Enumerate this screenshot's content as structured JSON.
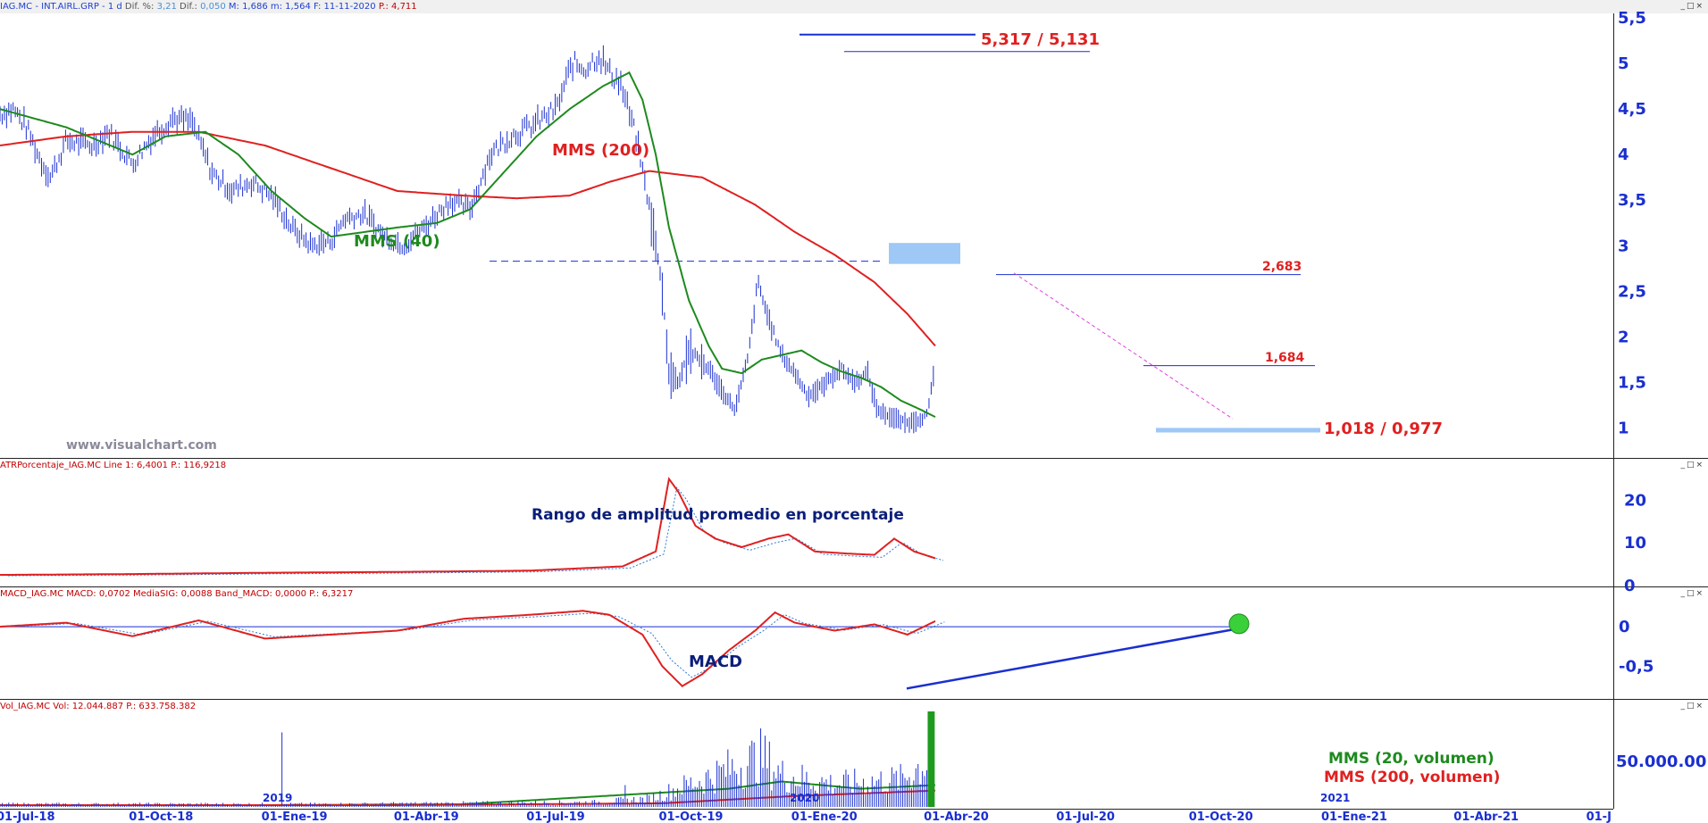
{
  "headers": {
    "price": {
      "symbol": "IAG.MC - INT.AIRL.GRP - 1 d",
      "dif_pct_label": "Dif. %:",
      "dif_pct": "3,21",
      "dif_label": "Dif.:",
      "dif": "0,050",
      "max": "M: 1,686",
      "min": "m: 1,564",
      "date": "F: 11-11-2020",
      "close": "P.: 4,711"
    },
    "atr": "ATRPorcentaje_IAG.MC  Line 1: 6,4001  P.: 116,9218",
    "macd": "MACD_IAG.MC  MACD: 0,0702  MediaSIG: 0,0088  Band_MACD: 0,0000  P.: 6,3217",
    "vol": "Vol_IAG.MC  Vol: 12.044.887  P.: 633.758.382"
  },
  "watermark": "www.visualchart.com",
  "annotations": {
    "mms200": "MMS (200)",
    "mms40": "MMS (40)",
    "high": "5,317 / 5,131",
    "r1": "2,683",
    "r2": "1,684",
    "low": "1,018 / 0,977",
    "atr_title": "Rango de amplitud promedio en porcentaje",
    "macd_title": "MACD",
    "vol20": "MMS (20, volumen)",
    "vol200": "MMS (200, volumen)",
    "year2019": "2019",
    "year2020": "2020",
    "year2021": "2021"
  },
  "colors": {
    "price": "#1a2fd0",
    "mms200": "#e02020",
    "mms40": "#1e8a1e",
    "axis": "#1a2fd0",
    "zone": "#9ec8f5",
    "signal": "#2a7ad8"
  },
  "chart_data": [
    {
      "type": "line",
      "name": "price",
      "x": [
        "01-Jul-18",
        "01-Oct-18",
        "01-Ene-19",
        "01-Abr-19",
        "01-Jul-19",
        "01-Oct-19",
        "01-Ene-20",
        "01-Abr-20",
        "01-Jul-20",
        "01-Oct-20",
        "01-Ene-21",
        "01-Abr-21",
        "01-J"
      ],
      "ylim": [
        0.7,
        5.55
      ],
      "yticks": [
        "1",
        "1,5",
        "2",
        "2,5",
        "3",
        "3,5",
        "4",
        "4,5",
        "5",
        "5,5"
      ],
      "series": [
        {
          "name": "IAG.MC",
          "points": [
            [
              0,
              4.45
            ],
            [
              0.1,
              4.5
            ],
            [
              0.2,
              4.3
            ],
            [
              0.3,
              3.95
            ],
            [
              0.38,
              3.75
            ],
            [
              0.5,
              4.15
            ],
            [
              0.7,
              4.1
            ],
            [
              0.82,
              4.25
            ],
            [
              1.0,
              3.9
            ],
            [
              1.15,
              4.2
            ],
            [
              1.3,
              4.4
            ],
            [
              1.45,
              4.35
            ],
            [
              1.6,
              3.8
            ],
            [
              1.75,
              3.6
            ],
            [
              1.9,
              3.7
            ],
            [
              2.05,
              3.55
            ],
            [
              2.2,
              3.2
            ],
            [
              2.35,
              3.0
            ],
            [
              2.5,
              3.05
            ],
            [
              2.6,
              3.3
            ],
            [
              2.75,
              3.35
            ],
            [
              2.9,
              3.1
            ],
            [
              3.05,
              3.0
            ],
            [
              3.2,
              3.2
            ],
            [
              3.4,
              3.5
            ],
            [
              3.55,
              3.4
            ],
            [
              3.7,
              4.0
            ],
            [
              3.85,
              4.2
            ],
            [
              4.0,
              4.3
            ],
            [
              4.2,
              4.5
            ],
            [
              4.32,
              5.0
            ],
            [
              4.42,
              4.95
            ],
            [
              4.52,
              5.1
            ],
            [
              4.6,
              4.9
            ],
            [
              4.68,
              4.8
            ],
            [
              4.8,
              4.2
            ],
            [
              4.88,
              3.6
            ],
            [
              4.95,
              3.0
            ],
            [
              5.0,
              2.5
            ],
            [
              5.05,
              1.6
            ],
            [
              5.12,
              1.5
            ],
            [
              5.2,
              1.85
            ],
            [
              5.35,
              1.65
            ],
            [
              5.45,
              1.4
            ],
            [
              5.55,
              1.2
            ],
            [
              5.65,
              1.8
            ],
            [
              5.72,
              2.6
            ],
            [
              5.8,
              2.2
            ],
            [
              5.9,
              1.8
            ],
            [
              6.0,
              1.6
            ],
            [
              6.1,
              1.35
            ],
            [
              6.2,
              1.45
            ],
            [
              6.35,
              1.65
            ],
            [
              6.45,
              1.5
            ],
            [
              6.55,
              1.6
            ],
            [
              6.62,
              1.2
            ],
            [
              6.75,
              1.1
            ],
            [
              6.85,
              1.05
            ],
            [
              6.95,
              1.1
            ],
            [
              7.0,
              1.15
            ],
            [
              7.06,
              1.684
            ]
          ]
        },
        {
          "name": "MMS (40)",
          "points": [
            [
              0,
              4.5
            ],
            [
              0.5,
              4.3
            ],
            [
              1.0,
              4.0
            ],
            [
              1.25,
              4.2
            ],
            [
              1.55,
              4.25
            ],
            [
              1.8,
              4.0
            ],
            [
              2.05,
              3.6
            ],
            [
              2.3,
              3.3
            ],
            [
              2.5,
              3.1
            ],
            [
              2.75,
              3.15
            ],
            [
              3.0,
              3.2
            ],
            [
              3.3,
              3.25
            ],
            [
              3.55,
              3.4
            ],
            [
              3.8,
              3.8
            ],
            [
              4.05,
              4.2
            ],
            [
              4.3,
              4.5
            ],
            [
              4.55,
              4.75
            ],
            [
              4.75,
              4.9
            ],
            [
              4.85,
              4.6
            ],
            [
              4.95,
              4.0
            ],
            [
              5.05,
              3.2
            ],
            [
              5.2,
              2.4
            ],
            [
              5.35,
              1.9
            ],
            [
              5.45,
              1.65
            ],
            [
              5.6,
              1.6
            ],
            [
              5.75,
              1.75
            ],
            [
              5.9,
              1.8
            ],
            [
              6.05,
              1.85
            ],
            [
              6.2,
              1.72
            ],
            [
              6.35,
              1.62
            ],
            [
              6.5,
              1.55
            ],
            [
              6.65,
              1.45
            ],
            [
              6.8,
              1.3
            ],
            [
              6.95,
              1.2
            ],
            [
              7.06,
              1.12
            ]
          ]
        },
        {
          "name": "MMS (200)",
          "points": [
            [
              0,
              4.1
            ],
            [
              0.5,
              4.2
            ],
            [
              1.0,
              4.25
            ],
            [
              1.5,
              4.25
            ],
            [
              2.0,
              4.1
            ],
            [
              2.5,
              3.85
            ],
            [
              3.0,
              3.6
            ],
            [
              3.5,
              3.55
            ],
            [
              3.9,
              3.52
            ],
            [
              4.3,
              3.55
            ],
            [
              4.6,
              3.7
            ],
            [
              4.9,
              3.82
            ],
            [
              5.3,
              3.75
            ],
            [
              5.7,
              3.45
            ],
            [
              6.0,
              3.15
            ],
            [
              6.3,
              2.9
            ],
            [
              6.6,
              2.6
            ],
            [
              6.85,
              2.25
            ],
            [
              7.06,
              1.9
            ]
          ]
        }
      ],
      "levels": [
        {
          "label": "5,317 / 5,131",
          "values": [
            5.317,
            5.131
          ]
        },
        {
          "label": "2,683",
          "value": 2.683
        },
        {
          "label": "1,684",
          "value": 1.684
        },
        {
          "label": "1,018 / 0,977",
          "values": [
            1.018,
            0.977
          ]
        }
      ]
    },
    {
      "type": "line",
      "name": "ATR %",
      "ylim": [
        0,
        27
      ],
      "yticks": [
        "0",
        "10",
        "20"
      ],
      "series": [
        {
          "name": "ATR",
          "points": [
            [
              0,
              2.5
            ],
            [
              1,
              2.7
            ],
            [
              2,
              3.0
            ],
            [
              3,
              3.2
            ],
            [
              4,
              3.5
            ],
            [
              4.7,
              4.5
            ],
            [
              4.95,
              8
            ],
            [
              5.05,
              25
            ],
            [
              5.12,
              22
            ],
            [
              5.25,
              14
            ],
            [
              5.4,
              11
            ],
            [
              5.6,
              9
            ],
            [
              5.8,
              11
            ],
            [
              5.95,
              12
            ],
            [
              6.15,
              8
            ],
            [
              6.4,
              7.5
            ],
            [
              6.6,
              7.2
            ],
            [
              6.75,
              11
            ],
            [
              6.9,
              8
            ],
            [
              7.06,
              6.4
            ]
          ]
        }
      ]
    },
    {
      "type": "line",
      "name": "MACD",
      "ylim": [
        -0.9,
        0.35
      ],
      "yticks": [
        "0",
        "-0,5"
      ],
      "series": [
        {
          "name": "MACD",
          "points": [
            [
              0,
              0.0
            ],
            [
              0.5,
              0.05
            ],
            [
              1.0,
              -0.12
            ],
            [
              1.5,
              0.08
            ],
            [
              2.0,
              -0.15
            ],
            [
              2.5,
              -0.1
            ],
            [
              3.0,
              -0.05
            ],
            [
              3.5,
              0.1
            ],
            [
              4.0,
              0.15
            ],
            [
              4.4,
              0.2
            ],
            [
              4.6,
              0.15
            ],
            [
              4.85,
              -0.1
            ],
            [
              5.0,
              -0.5
            ],
            [
              5.15,
              -0.75
            ],
            [
              5.3,
              -0.6
            ],
            [
              5.5,
              -0.3
            ],
            [
              5.7,
              -0.05
            ],
            [
              5.85,
              0.18
            ],
            [
              6.0,
              0.05
            ],
            [
              6.3,
              -0.05
            ],
            [
              6.6,
              0.03
            ],
            [
              6.85,
              -0.1
            ],
            [
              7.06,
              0.0702
            ]
          ]
        }
      ]
    },
    {
      "type": "bar",
      "name": "Volumen",
      "ylim": [
        0,
        105000000
      ],
      "yticks": [
        "50.000.00"
      ],
      "peak": 105000000
    }
  ]
}
